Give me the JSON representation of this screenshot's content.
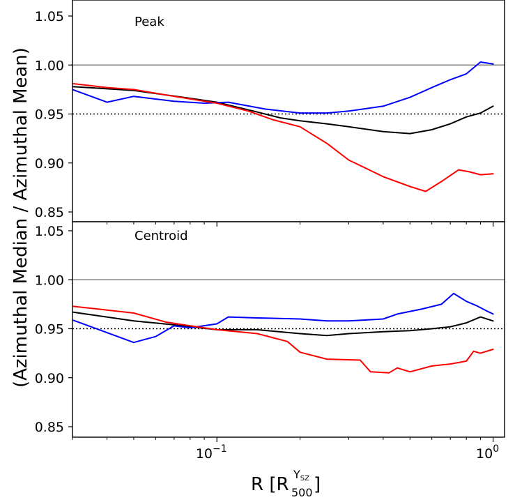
{
  "chart_data": [
    {
      "type": "line",
      "title": "Peak",
      "xlabel": "R [R500^YSZ]",
      "ylabel": "(Azimuthal Median / Azimuthal Mean)",
      "xscale": "log",
      "xlim": [
        0.03,
        1.1
      ],
      "ylim": [
        0.84,
        1.06
      ],
      "yticks": [
        "0.85",
        "0.90",
        "0.95",
        "1.00",
        "1.05"
      ],
      "reference_lines": [
        {
          "y": 1.0,
          "style": "solid",
          "color": "#808080"
        },
        {
          "y": 0.95,
          "style": "dotted",
          "color": "#000000"
        }
      ],
      "series": [
        {
          "name": "black",
          "color": "#000000",
          "x": [
            0.03,
            0.05,
            0.08,
            0.1,
            0.14,
            0.17,
            0.2,
            0.25,
            0.3,
            0.4,
            0.5,
            0.6,
            0.7,
            0.8,
            0.9,
            1.0
          ],
          "y": [
            0.978,
            0.974,
            0.966,
            0.962,
            0.952,
            0.946,
            0.943,
            0.94,
            0.937,
            0.932,
            0.93,
            0.934,
            0.94,
            0.947,
            0.951,
            0.958
          ]
        },
        {
          "name": "blue",
          "color": "#0000ff",
          "x": [
            0.03,
            0.04,
            0.05,
            0.07,
            0.09,
            0.11,
            0.15,
            0.2,
            0.25,
            0.3,
            0.4,
            0.5,
            0.6,
            0.7,
            0.8,
            0.9,
            1.0
          ],
          "y": [
            0.975,
            0.962,
            0.968,
            0.963,
            0.961,
            0.962,
            0.955,
            0.951,
            0.951,
            0.953,
            0.958,
            0.967,
            0.977,
            0.985,
            0.991,
            1.003,
            1.001
          ]
        },
        {
          "name": "red",
          "color": "#ff0000",
          "x": [
            0.03,
            0.04,
            0.05,
            0.07,
            0.1,
            0.13,
            0.16,
            0.2,
            0.25,
            0.3,
            0.4,
            0.5,
            0.57,
            0.65,
            0.75,
            0.82,
            0.9,
            1.0
          ],
          "y": [
            0.981,
            0.977,
            0.975,
            0.968,
            0.961,
            0.953,
            0.944,
            0.937,
            0.92,
            0.903,
            0.886,
            0.876,
            0.871,
            0.881,
            0.893,
            0.891,
            0.888,
            0.889
          ]
        }
      ]
    },
    {
      "type": "line",
      "title": "Centroid",
      "xlabel": "R [R500^YSZ]",
      "ylabel": "(Azimuthal Median / Azimuthal Mean)",
      "xscale": "log",
      "xlim": [
        0.03,
        1.1
      ],
      "ylim": [
        0.84,
        1.06
      ],
      "yticks": [
        "0.85",
        "0.90",
        "0.95",
        "1.00",
        "1.05"
      ],
      "xticks": [
        {
          "value": 0.1,
          "label_base": "10",
          "label_exp": "−1"
        },
        {
          "value": 1.0,
          "label_base": "10",
          "label_exp": "0"
        }
      ],
      "reference_lines": [
        {
          "y": 1.0,
          "style": "solid",
          "color": "#808080"
        },
        {
          "y": 0.95,
          "style": "dotted",
          "color": "#000000"
        }
      ],
      "series": [
        {
          "name": "black",
          "color": "#000000",
          "x": [
            0.03,
            0.05,
            0.07,
            0.1,
            0.14,
            0.2,
            0.25,
            0.3,
            0.4,
            0.5,
            0.6,
            0.7,
            0.8,
            0.9,
            1.0
          ],
          "y": [
            0.967,
            0.958,
            0.954,
            0.949,
            0.949,
            0.945,
            0.943,
            0.945,
            0.947,
            0.948,
            0.95,
            0.952,
            0.956,
            0.962,
            0.958
          ]
        },
        {
          "name": "blue",
          "color": "#0000ff",
          "x": [
            0.03,
            0.05,
            0.06,
            0.07,
            0.08,
            0.1,
            0.11,
            0.14,
            0.2,
            0.25,
            0.3,
            0.4,
            0.45,
            0.55,
            0.65,
            0.72,
            0.8,
            0.88,
            0.95,
            1.0
          ],
          "y": [
            0.959,
            0.936,
            0.942,
            0.953,
            0.951,
            0.955,
            0.962,
            0.961,
            0.96,
            0.958,
            0.958,
            0.96,
            0.965,
            0.97,
            0.975,
            0.986,
            0.978,
            0.973,
            0.968,
            0.965
          ]
        },
        {
          "name": "red",
          "color": "#ff0000",
          "x": [
            0.03,
            0.05,
            0.065,
            0.08,
            0.1,
            0.14,
            0.18,
            0.2,
            0.25,
            0.33,
            0.36,
            0.42,
            0.45,
            0.5,
            0.6,
            0.7,
            0.8,
            0.85,
            0.9,
            1.0
          ],
          "y": [
            0.973,
            0.966,
            0.957,
            0.953,
            0.949,
            0.945,
            0.937,
            0.926,
            0.919,
            0.918,
            0.906,
            0.905,
            0.91,
            0.906,
            0.912,
            0.914,
            0.917,
            0.927,
            0.925,
            0.929
          ]
        }
      ]
    }
  ]
}
